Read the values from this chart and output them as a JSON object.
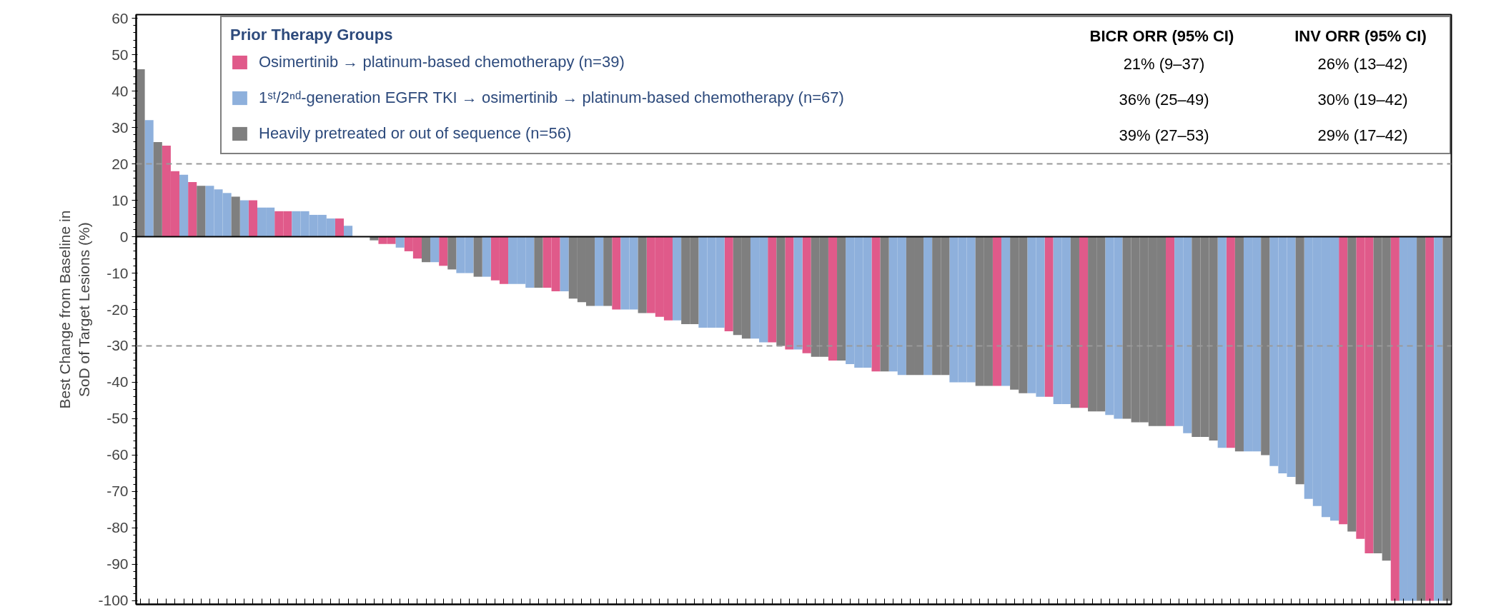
{
  "chart_data": {
    "type": "bar",
    "ylabel": "Best Change from Baseline in\nSoD of Target Lesions (%)",
    "legend_title": "Prior Therapy Groups",
    "categories": [
      null,
      null,
      null,
      null,
      null,
      null,
      null,
      null,
      null,
      null,
      null,
      null,
      null,
      null,
      null,
      null,
      null,
      null,
      null,
      null,
      null,
      null,
      null,
      null,
      null,
      null,
      null,
      null,
      null,
      null,
      null,
      null,
      null,
      null,
      null,
      null,
      null,
      null,
      null,
      null,
      null,
      null,
      null,
      null,
      null,
      null,
      null,
      null,
      null,
      null,
      null,
      null,
      null,
      null,
      null,
      null,
      null,
      null,
      null,
      null,
      null,
      null,
      null,
      null,
      null,
      null,
      null,
      null,
      null,
      null,
      null,
      null,
      null,
      null,
      null,
      null,
      null,
      null,
      null,
      null,
      null,
      null,
      null,
      null,
      null,
      null,
      null,
      null,
      null,
      null,
      null,
      null,
      null,
      null,
      null,
      null,
      null,
      null,
      null,
      null,
      null,
      null,
      null,
      null,
      null,
      null,
      null,
      null,
      null,
      null,
      null,
      null,
      null,
      null,
      null,
      null,
      null,
      null,
      null,
      null,
      null,
      null,
      null,
      null,
      null,
      null,
      null,
      null,
      null,
      null,
      null,
      null,
      null,
      null,
      null,
      null,
      null,
      null,
      null,
      null,
      null,
      null,
      null,
      null,
      null,
      null,
      null,
      null,
      null,
      null,
      null,
      null
    ],
    "series": [
      {
        "name": "Osimertinib → platinum-based chemotherapy (n=39)",
        "color": "#e05a8a",
        "values": [
          null,
          null,
          null,
          25,
          18,
          null,
          15,
          null,
          null,
          null,
          null,
          null,
          null,
          10,
          null,
          null,
          7,
          7,
          null,
          null,
          null,
          null,
          null,
          5,
          null,
          null,
          null,
          null,
          -2,
          -2,
          null,
          -4,
          -6,
          null,
          null,
          -8,
          null,
          null,
          null,
          null,
          null,
          -12,
          -13,
          null,
          null,
          null,
          null,
          -14,
          -15,
          null,
          null,
          null,
          null,
          null,
          null,
          -20,
          null,
          null,
          null,
          -21,
          -22,
          -23,
          null,
          null,
          null,
          null,
          null,
          null,
          -26,
          null,
          null,
          null,
          null,
          -29,
          null,
          -31,
          null,
          -32,
          null,
          null,
          -34,
          null,
          null,
          null,
          null,
          -37,
          null,
          null,
          null,
          null,
          null,
          null,
          null,
          null,
          null,
          null,
          null,
          null,
          null,
          -41,
          null,
          null,
          null,
          null,
          null,
          -44,
          null,
          null,
          null,
          -47,
          null,
          null,
          null,
          null,
          null,
          null,
          null,
          null,
          null,
          -52,
          null,
          null,
          null,
          null,
          null,
          null,
          -58,
          null,
          null,
          null,
          null,
          null,
          null,
          null,
          null,
          null,
          null,
          null,
          null,
          -79,
          null,
          -83,
          -87,
          null,
          null,
          -100,
          null,
          null,
          null,
          -100,
          null,
          null
        ]
      },
      {
        "name": "1ˢᵗ/2ⁿᵈ-generation EGFR TKI → osimertinib → platinum-based chemotherapy (n=67)",
        "color": "#8eb0dc",
        "values": [
          null,
          32,
          null,
          null,
          null,
          17,
          null,
          null,
          14,
          13,
          12,
          null,
          10,
          null,
          8,
          8,
          null,
          null,
          7,
          7,
          6,
          6,
          5,
          null,
          3,
          null,
          null,
          null,
          null,
          null,
          -3,
          null,
          null,
          null,
          -7,
          null,
          null,
          -10,
          -10,
          null,
          -11,
          null,
          null,
          -13,
          -13,
          -14,
          null,
          null,
          null,
          -15,
          null,
          null,
          null,
          -19,
          null,
          null,
          -20,
          -20,
          null,
          null,
          null,
          null,
          -23,
          null,
          null,
          -25,
          -25,
          -25,
          null,
          null,
          null,
          -28,
          -29,
          null,
          null,
          null,
          -31,
          null,
          null,
          null,
          null,
          null,
          -35,
          -36,
          -36,
          null,
          null,
          -37,
          -38,
          null,
          null,
          -38,
          null,
          null,
          -40,
          -40,
          -40,
          null,
          null,
          null,
          -41,
          null,
          null,
          -43,
          -44,
          null,
          -46,
          -46,
          null,
          null,
          null,
          null,
          -49,
          -50,
          null,
          null,
          null,
          null,
          null,
          null,
          -52,
          -54,
          null,
          null,
          null,
          -58,
          null,
          null,
          -59,
          -59,
          null,
          -63,
          -65,
          -66,
          null,
          -72,
          -74,
          -77,
          -78,
          null,
          null,
          null,
          null,
          null,
          null,
          null,
          -100,
          -100,
          null,
          null,
          -100,
          null
        ]
      },
      {
        "name": "Heavily pretreated or out of sequence (n=56)",
        "color": "#7f7f7f",
        "values": [
          46,
          null,
          26,
          null,
          null,
          null,
          null,
          14,
          null,
          null,
          null,
          11,
          null,
          null,
          null,
          null,
          null,
          null,
          null,
          null,
          null,
          null,
          null,
          null,
          null,
          0,
          0,
          -1,
          null,
          null,
          null,
          null,
          null,
          -7,
          null,
          null,
          -9,
          null,
          null,
          -11,
          null,
          null,
          null,
          null,
          null,
          null,
          -14,
          null,
          null,
          null,
          -17,
          -18,
          -19,
          null,
          -19,
          null,
          null,
          null,
          -21,
          null,
          null,
          null,
          null,
          -24,
          -24,
          null,
          null,
          null,
          null,
          -27,
          -28,
          null,
          null,
          null,
          -30,
          null,
          null,
          null,
          -33,
          -33,
          null,
          -34,
          null,
          null,
          null,
          null,
          -37,
          null,
          null,
          -38,
          -38,
          null,
          -38,
          -38,
          null,
          null,
          null,
          -41,
          -41,
          null,
          null,
          -42,
          -43,
          null,
          null,
          null,
          null,
          null,
          -47,
          null,
          -48,
          -48,
          null,
          null,
          -50,
          -51,
          -51,
          -52,
          -52,
          null,
          null,
          null,
          -55,
          -55,
          -56,
          null,
          null,
          -59,
          null,
          null,
          -60,
          null,
          null,
          null,
          -68,
          null,
          null,
          null,
          null,
          null,
          -81,
          null,
          null,
          -87,
          -89,
          null,
          null,
          null,
          -100,
          null,
          null,
          -100
        ]
      }
    ],
    "ylim": [
      -101,
      61
    ],
    "yticks": [
      -100,
      -90,
      -80,
      -70,
      -60,
      -50,
      -40,
      -30,
      -20,
      -10,
      0,
      10,
      20,
      30,
      40,
      50,
      60
    ],
    "ref_lines": [
      {
        "axis": "y",
        "value": 20,
        "color": "#999999",
        "line_style": "dashed"
      },
      {
        "axis": "y",
        "value": -30,
        "color": "#999999",
        "line_style": "dashed"
      }
    ],
    "annotations": [
      "BICR ORR (95%  CI)",
      "INV ORR (95%  CI)",
      "21% (9–37)",
      "26% (13–42)",
      "36% (25–49)",
      "30% (19–42)",
      "39% (27–53)",
      "29% (17–42)"
    ],
    "grid": false,
    "legend": "top"
  }
}
